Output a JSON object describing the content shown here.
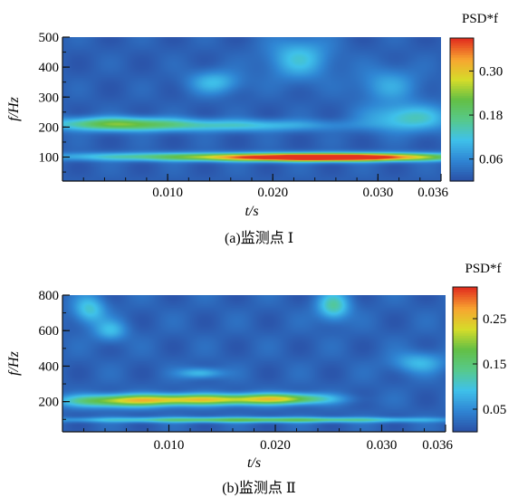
{
  "chart_data": [
    {
      "type": "heatmap",
      "caption": "(a)监测点 Ⅰ",
      "xlabel": "t/s",
      "ylabel": "f/Hz",
      "colorbar_label": "PSD*f",
      "xlim": [
        0,
        0.036
      ],
      "ylim": [
        20,
        500
      ],
      "x_ticks": [
        0.01,
        0.02,
        0.03,
        0.036
      ],
      "x_tick_labels": [
        "0.010",
        "0.020",
        "0.030",
        "0.036"
      ],
      "y_ticks": [
        100,
        200,
        300,
        400,
        500
      ],
      "y_tick_labels": [
        "100",
        "200",
        "300",
        "400",
        "500"
      ],
      "color_range": [
        0.0,
        0.39
      ],
      "colorbar_ticks": [
        0.06,
        0.18,
        0.3
      ],
      "colorbar_tick_labels": [
        "0.06",
        "0.18",
        "0.30"
      ],
      "colorscale": [
        "#2b52a8",
        "#2f86d4",
        "#3fc1ea",
        "#57c98b",
        "#63bf45",
        "#d6dc2a",
        "#f7a530",
        "#e3321f"
      ],
      "features": [
        {
          "t_center": 0.024,
          "f_center": 97,
          "t_width": 0.009,
          "f_width": 12,
          "value": 0.37
        },
        {
          "t_center": 0.012,
          "f_center": 100,
          "t_width": 0.013,
          "f_width": 14,
          "value": 0.16
        },
        {
          "t_center": 0.03,
          "f_center": 100,
          "t_width": 0.01,
          "f_width": 14,
          "value": 0.18
        },
        {
          "t_center": 0.005,
          "f_center": 210,
          "t_width": 0.006,
          "f_width": 22,
          "value": 0.19
        },
        {
          "t_center": 0.016,
          "f_center": 205,
          "t_width": 0.01,
          "f_width": 20,
          "value": 0.11
        },
        {
          "t_center": 0.033,
          "f_center": 230,
          "t_width": 0.004,
          "f_width": 45,
          "value": 0.12
        },
        {
          "t_center": 0.0145,
          "f_center": 350,
          "t_width": 0.0025,
          "f_width": 40,
          "value": 0.09
        },
        {
          "t_center": 0.0225,
          "f_center": 430,
          "t_width": 0.003,
          "f_width": 70,
          "value": 0.1
        },
        {
          "t_center": 0.031,
          "f_center": 340,
          "t_width": 0.003,
          "f_width": 60,
          "value": 0.07
        }
      ]
    },
    {
      "type": "heatmap",
      "caption": "(b)监测点 Ⅱ",
      "xlabel": "t/s",
      "ylabel": "f/Hz",
      "colorbar_label": "PSD*f",
      "xlim": [
        0,
        0.036
      ],
      "ylim": [
        30,
        800
      ],
      "x_ticks": [
        0.01,
        0.02,
        0.03,
        0.036
      ],
      "x_tick_labels": [
        "0.010",
        "0.020",
        "0.030",
        "0.036"
      ],
      "y_ticks": [
        200,
        400,
        600,
        800
      ],
      "y_tick_labels": [
        "200",
        "400",
        "600",
        "800"
      ],
      "color_range": [
        0.0,
        0.32
      ],
      "colorbar_ticks": [
        0.05,
        0.15,
        0.25
      ],
      "colorbar_tick_labels": [
        "0.05",
        "0.15",
        "0.25"
      ],
      "colorscale": [
        "#2b52a8",
        "#2f86d4",
        "#3fc1ea",
        "#57c98b",
        "#63bf45",
        "#d6dc2a",
        "#f7a530",
        "#e3321f"
      ],
      "features": [
        {
          "t_center": 0.018,
          "f_center": 95,
          "t_width": 0.016,
          "f_width": 15,
          "value": 0.16
        },
        {
          "t_center": 0.013,
          "f_center": 210,
          "t_width": 0.008,
          "f_width": 30,
          "value": 0.22
        },
        {
          "t_center": 0.005,
          "f_center": 200,
          "t_width": 0.005,
          "f_width": 35,
          "value": 0.14
        },
        {
          "t_center": 0.021,
          "f_center": 215,
          "t_width": 0.004,
          "f_width": 30,
          "value": 0.14
        },
        {
          "t_center": 0.0025,
          "f_center": 720,
          "t_width": 0.0015,
          "f_width": 80,
          "value": 0.09
        },
        {
          "t_center": 0.0045,
          "f_center": 600,
          "t_width": 0.0015,
          "f_width": 60,
          "value": 0.07
        },
        {
          "t_center": 0.0255,
          "f_center": 740,
          "t_width": 0.0015,
          "f_width": 80,
          "value": 0.11
        },
        {
          "t_center": 0.013,
          "f_center": 360,
          "t_width": 0.002,
          "f_width": 30,
          "value": 0.08
        },
        {
          "t_center": 0.0335,
          "f_center": 420,
          "t_width": 0.0025,
          "f_width": 60,
          "value": 0.07
        }
      ]
    }
  ]
}
